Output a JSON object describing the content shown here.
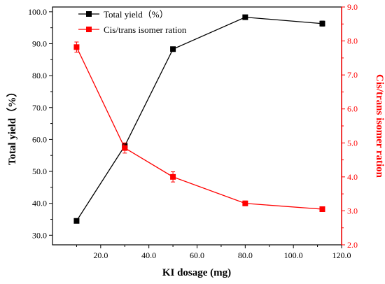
{
  "chart_data": {
    "type": "line",
    "xlabel": "KI dosage (mg)",
    "xlim": [
      0,
      120
    ],
    "x_ticks": [
      "20.0",
      "40.0",
      "60.0",
      "80.0",
      "100.0",
      "120.0"
    ],
    "ylabel_left": "Total yield（%）",
    "ylim_left": [
      27,
      101.5
    ],
    "y_ticks_left": [
      "30.0",
      "40.0",
      "50.0",
      "60.0",
      "70.0",
      "80.0",
      "90.0",
      "100.0"
    ],
    "ylabel_right": "Cis/trans isomer ration",
    "ylim_right": [
      2.0,
      9.0
    ],
    "y_ticks_right": [
      "2.0",
      "3.0",
      "4.0",
      "5.0",
      "6.0",
      "7.0",
      "8.0",
      "9.0"
    ],
    "legend_position": "top-left",
    "grid": false,
    "series": [
      {
        "name": "Total yield（%）",
        "axis": "left",
        "color": "#000000",
        "marker": "square",
        "x": [
          10,
          30,
          50,
          80,
          112
        ],
        "y": [
          34.5,
          58.0,
          88.3,
          98.3,
          96.3
        ],
        "error": [
          0.7,
          0.8,
          0.5,
          0.5,
          0.8
        ]
      },
      {
        "name": "Cis/trans isomer ration",
        "axis": "right",
        "color": "#ff0000",
        "marker": "square",
        "x": [
          10,
          30,
          50,
          80,
          112
        ],
        "y": [
          7.82,
          4.85,
          4.0,
          3.22,
          3.05
        ],
        "error": [
          0.15,
          0.15,
          0.15,
          0.07,
          0.03
        ]
      }
    ]
  }
}
